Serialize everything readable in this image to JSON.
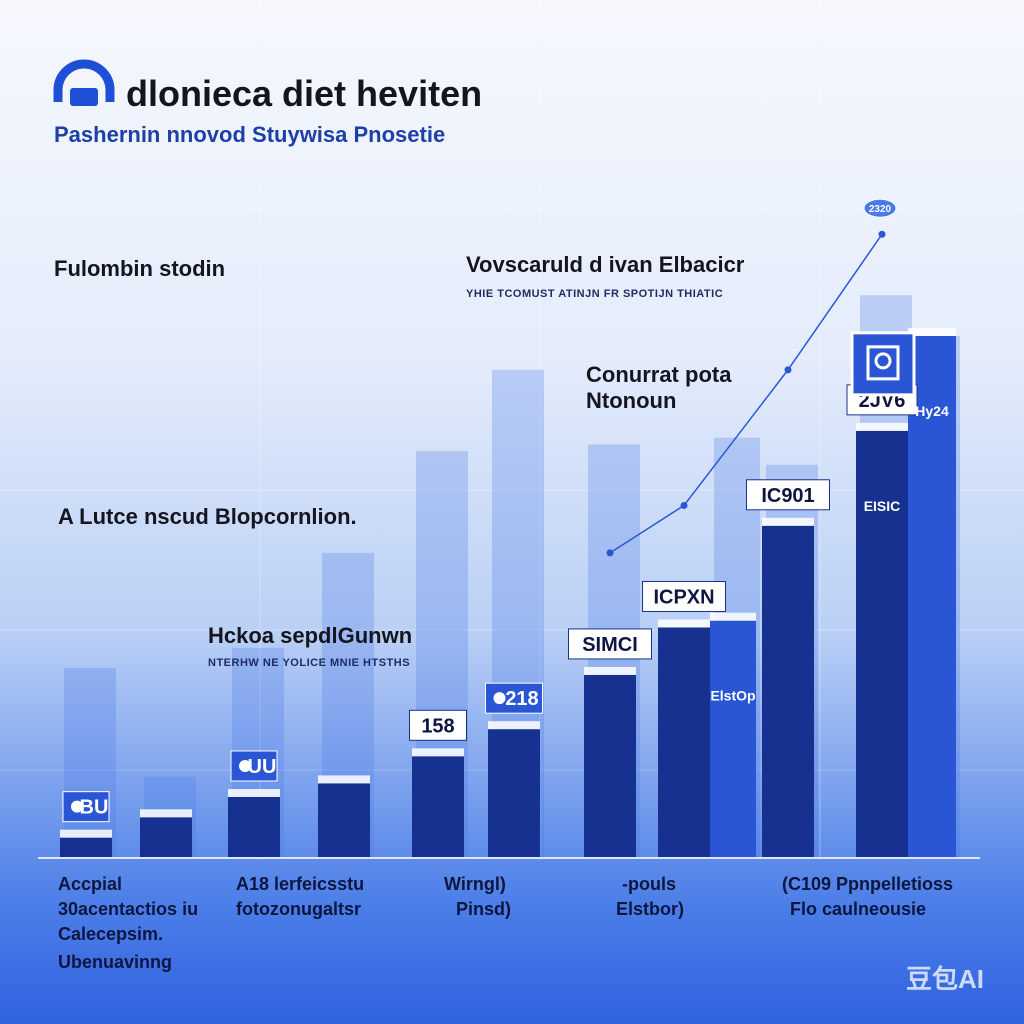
{
  "chart_data": {
    "type": "bar",
    "title": "dlonieca diet heviten",
    "subtitle": "Pashernin nnovod Stuywisa Pnosetie",
    "xlabel": "",
    "ylabel": "",
    "ylim": [
      0,
      100
    ],
    "grid": true,
    "category_labels": [
      [
        "Accpial",
        "30acentactios iu",
        "Calecepsim.",
        "Ubenuavinng"
      ],
      [
        "A18 lerfeicsstu",
        "fotozonugaltsr"
      ],
      [
        "Wirngl)",
        "Pinsd)"
      ],
      [
        "-pouls",
        "Elstbor)"
      ],
      [
        "(C109 Ppnpelletioss",
        "Flo caulneousie"
      ]
    ],
    "background_bars": [
      28,
      12,
      31,
      45,
      60,
      72,
      61,
      30,
      62,
      58,
      83,
      77
    ],
    "values": [
      3,
      6,
      9,
      11,
      15,
      19,
      27,
      34,
      35,
      49,
      63,
      77
    ],
    "data_labels": [
      "BU",
      "",
      "UU",
      "",
      "158",
      "218",
      "SIMCI",
      "ICPXN",
      "",
      "IC901",
      "2JV6",
      ""
    ],
    "inside_labels": [
      "",
      "",
      "",
      "",
      "",
      "",
      "",
      "",
      "ElstOp",
      "",
      "EISIC",
      "Hy24"
    ],
    "trend_values": [
      null,
      null,
      null,
      null,
      null,
      null,
      45,
      52,
      null,
      72,
      92,
      null
    ],
    "annotations": [
      {
        "text": "Fulombin stodin",
        "sub": ""
      },
      {
        "text": "Vovscaruld d ivan Elbacicr",
        "sub": "YHIE TCOMUST ATINJN FR SPOTIJN THIATIC"
      },
      {
        "text": "Conurrat pota",
        "sub": ""
      },
      {
        "text": "Ntonoun",
        "sub": ""
      },
      {
        "text": "A Lutce nscud Blopcornlion.",
        "sub": ""
      },
      {
        "text": "Hckoa sepdlGunwn",
        "sub": "NTERHW NE YOLICE MNIE HTSTHS"
      }
    ],
    "trend_badge": "2320"
  },
  "watermark": "豆包AI",
  "colors": {
    "bar_dark": "#16318f",
    "bar_mid": "#2a56d6",
    "bar_light": "#4a7ae6",
    "title": "#15151f",
    "subtitle": "#1e3fa8"
  },
  "icons": [
    "headphone-logo-icon",
    "badge-dot-icon",
    "photo-icon"
  ]
}
